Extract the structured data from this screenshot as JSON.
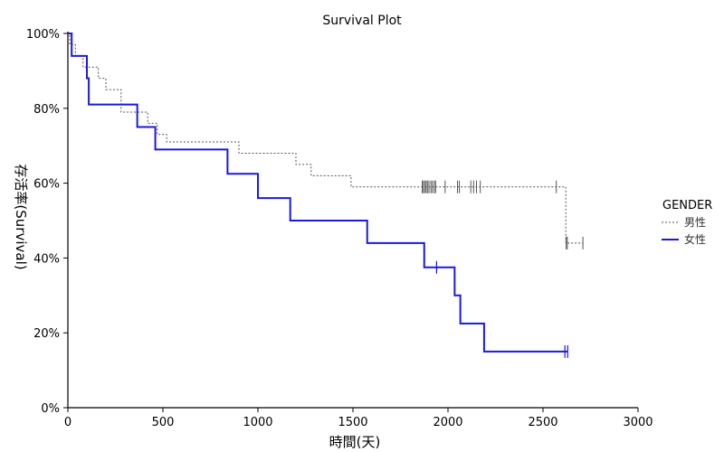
{
  "chart_data": {
    "type": "line",
    "title": "Survival Plot",
    "xlabel": "時間(天)",
    "ylabel": "存活率(Survival)",
    "xlim": [
      0,
      3000
    ],
    "ylim": [
      0,
      100
    ],
    "x_ticks": [
      0,
      500,
      1000,
      1500,
      2000,
      2500,
      3000
    ],
    "y_ticks": [
      0,
      20,
      40,
      60,
      80,
      100
    ],
    "y_tick_labels": [
      "0%",
      "20%",
      "40%",
      "60%",
      "80%",
      "100%"
    ],
    "grid": false,
    "legend": {
      "title": "GENDER",
      "position": "right"
    },
    "series": [
      {
        "name": "男性",
        "style": "dotted",
        "color": "#555555",
        "steps": [
          [
            0,
            100
          ],
          [
            10,
            97
          ],
          [
            40,
            94
          ],
          [
            80,
            91
          ],
          [
            160,
            88
          ],
          [
            200,
            85
          ],
          [
            280,
            79
          ],
          [
            420,
            76
          ],
          [
            470,
            73
          ],
          [
            520,
            71
          ],
          [
            900,
            68
          ],
          [
            1200,
            65
          ],
          [
            1280,
            62
          ],
          [
            1490,
            59
          ],
          [
            2620,
            44
          ]
        ],
        "end_x": 2710,
        "censored": [
          1865,
          1870,
          1878,
          1885,
          1892,
          1900,
          1910,
          1918,
          1928,
          1935,
          1985,
          2050,
          2060,
          2120,
          2135,
          2150,
          2170,
          2570,
          2622,
          2628,
          2710
        ]
      },
      {
        "name": "女性",
        "style": "solid",
        "color": "#1a1adb",
        "steps": [
          [
            0,
            100
          ],
          [
            20,
            94
          ],
          [
            100,
            88
          ],
          [
            110,
            81
          ],
          [
            365,
            75
          ],
          [
            460,
            69
          ],
          [
            840,
            62.5
          ],
          [
            1000,
            56
          ],
          [
            1170,
            50
          ],
          [
            1575,
            44
          ],
          [
            1875,
            37.5
          ],
          [
            2035,
            30
          ],
          [
            2065,
            22.5
          ],
          [
            2190,
            15
          ]
        ],
        "end_x": 2630,
        "censored": [
          1940,
          2615,
          2630
        ]
      }
    ]
  }
}
